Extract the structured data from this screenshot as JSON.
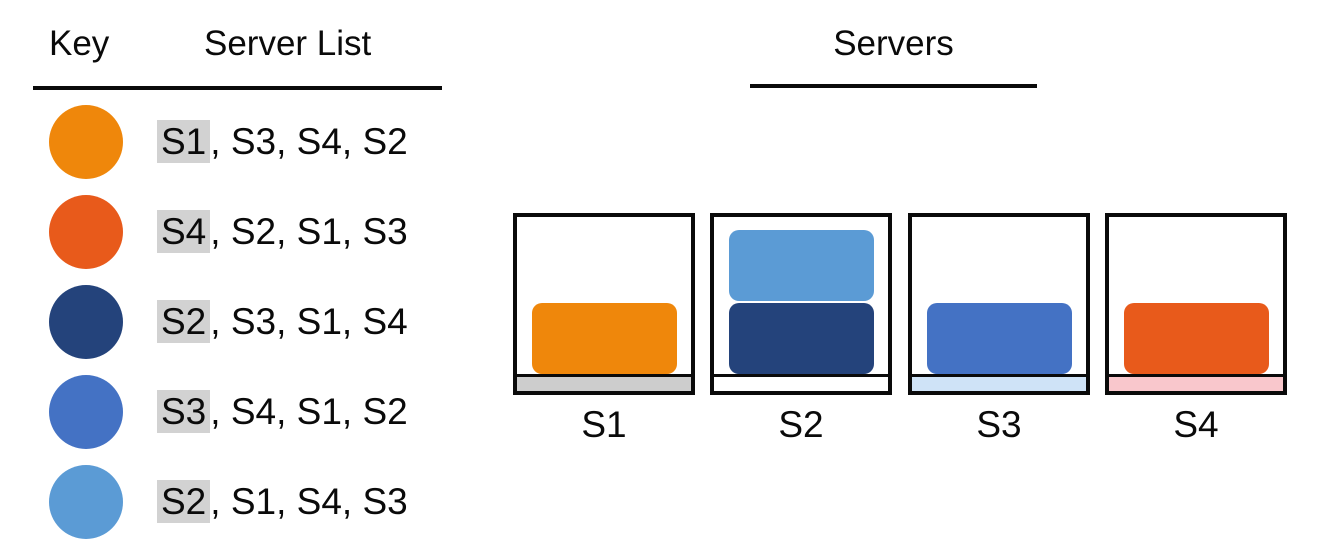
{
  "key_panel": {
    "header_key": "Key",
    "header_server_list": "Server List",
    "highlight_color": "#d2d2d2",
    "rows": [
      {
        "icon": "orange-circle",
        "color": "#ef870b",
        "head": "S1",
        "tail": ", S3, S4, S2"
      },
      {
        "icon": "red-orange-circle",
        "color": "#e85a1b",
        "head": "S4",
        "tail": ", S2, S1, S3"
      },
      {
        "icon": "navy-circle",
        "color": "#24437b",
        "head": "S2",
        "tail": ", S3, S1, S4"
      },
      {
        "icon": "blue-circle",
        "color": "#4472c4",
        "head": "S3",
        "tail": ", S4, S1, S2"
      },
      {
        "icon": "light-blue-circle",
        "color": "#5b9bd5",
        "head": "S2",
        "tail": ", S1, S4, S3"
      }
    ]
  },
  "servers_panel": {
    "title": "Servers",
    "servers": [
      {
        "label": "S1",
        "strip_color": "#cdcdcd",
        "blocks": [
          "#ef870b"
        ]
      },
      {
        "label": "S2",
        "strip_color": "#ffffff",
        "blocks": [
          "#5b9bd5",
          "#24437b"
        ]
      },
      {
        "label": "S3",
        "strip_color": "#cfe3f7",
        "blocks": [
          "#4472c4"
        ]
      },
      {
        "label": "S4",
        "strip_color": "#f9c7cc",
        "blocks": [
          "#e85a1b"
        ]
      }
    ]
  }
}
